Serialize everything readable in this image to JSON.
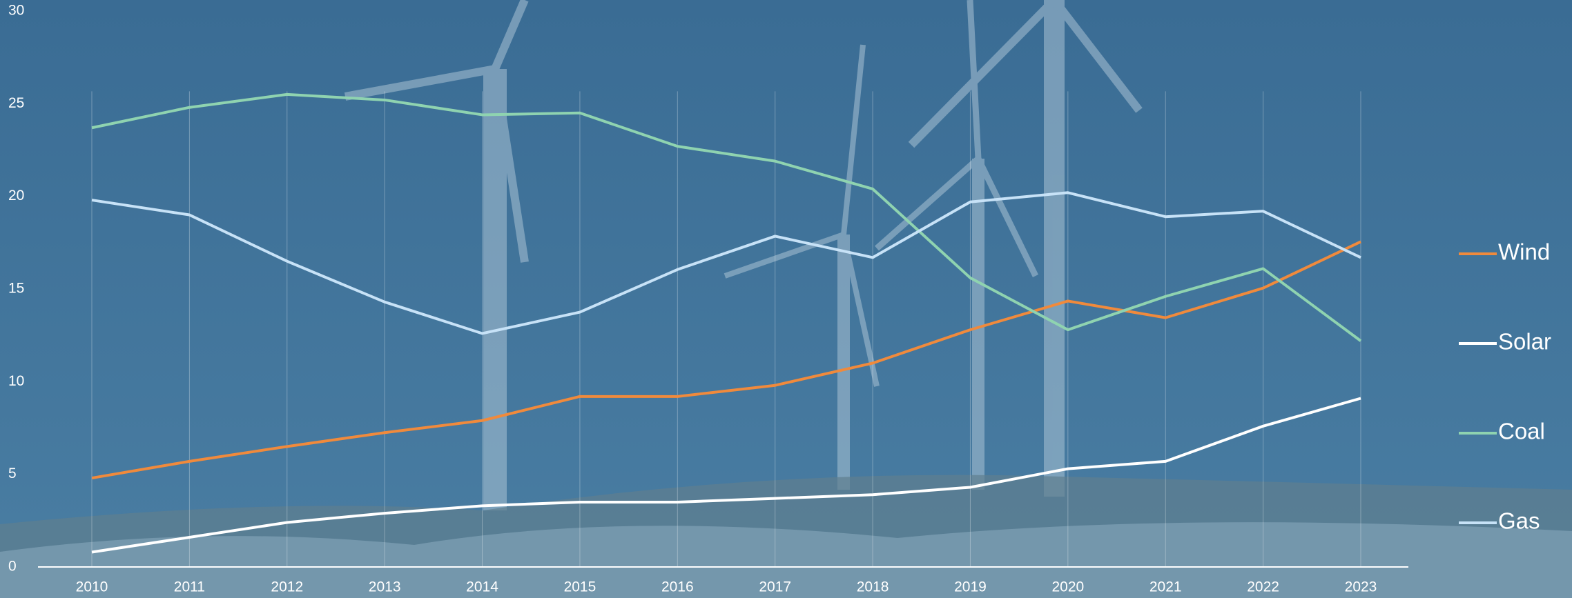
{
  "chart_data": {
    "type": "line",
    "categories": [
      "2010",
      "2011",
      "2012",
      "2013",
      "2014",
      "2015",
      "2016",
      "2017",
      "2018",
      "2019",
      "2020",
      "2021",
      "2022",
      "2023"
    ],
    "series": [
      {
        "name": "Wind",
        "color": "#f08a3c",
        "values": [
          4.8,
          5.7,
          6.5,
          7.25,
          7.9,
          9.2,
          9.2,
          9.8,
          11.0,
          12.8,
          14.35,
          13.45,
          15.05,
          17.55
        ]
      },
      {
        "name": "Solar",
        "color": "#ffffff",
        "values": [
          0.8,
          1.6,
          2.4,
          2.9,
          3.3,
          3.5,
          3.5,
          3.7,
          3.9,
          4.3,
          5.3,
          5.7,
          7.6,
          9.1
        ]
      },
      {
        "name": "Coal",
        "color": "#8fd3b0",
        "values": [
          23.7,
          24.8,
          25.5,
          25.2,
          24.4,
          24.5,
          22.7,
          21.9,
          20.4,
          15.6,
          12.8,
          14.6,
          16.1,
          12.2
        ]
      },
      {
        "name": "Gas",
        "color": "#c7e2f7",
        "values": [
          19.8,
          19.0,
          16.5,
          14.3,
          12.6,
          13.75,
          16.05,
          17.85,
          16.7,
          19.7,
          20.2,
          18.9,
          19.2,
          16.7
        ]
      }
    ],
    "ylim": [
      0,
      30
    ],
    "yticks": [
      0,
      5,
      10,
      15,
      20,
      25,
      30
    ],
    "grid": true,
    "legend": "right"
  }
}
